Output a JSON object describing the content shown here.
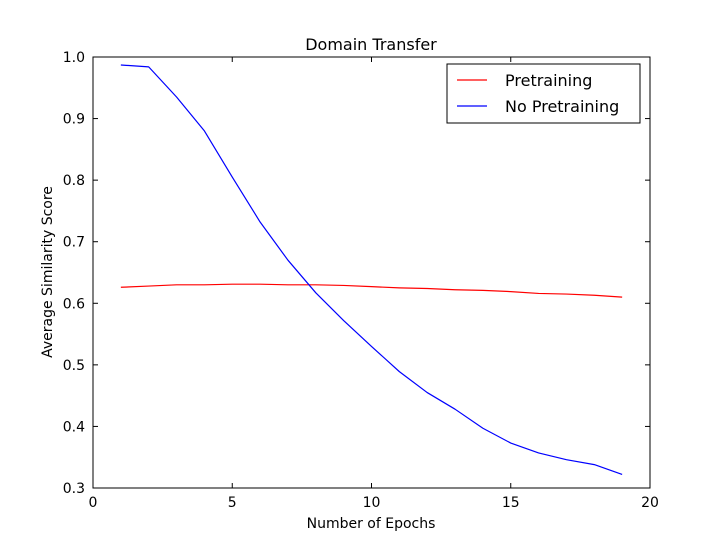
{
  "chart_data": {
    "type": "line",
    "title": "Domain Transfer",
    "xlabel": "Number of Epochs",
    "ylabel": "Average Similarity Score",
    "xlim": [
      0,
      20
    ],
    "ylim": [
      0.3,
      1.0
    ],
    "xticks": [
      0,
      5,
      10,
      15,
      20
    ],
    "xtick_labels": [
      "0",
      "5",
      "10",
      "15",
      "20"
    ],
    "yticks": [
      0.3,
      0.4,
      0.5,
      0.6,
      0.7,
      0.8,
      0.9,
      1.0
    ],
    "ytick_labels": [
      "0.3",
      "0.4",
      "0.5",
      "0.6",
      "0.7",
      "0.8",
      "0.9",
      "1.0"
    ],
    "grid": false,
    "legend_position": "top-right",
    "x": [
      1,
      2,
      3,
      4,
      5,
      6,
      7,
      8,
      9,
      10,
      11,
      12,
      13,
      14,
      15,
      16,
      17,
      18,
      19
    ],
    "series": [
      {
        "name": "Pretraining",
        "color": "#ff0000",
        "values": [
          0.626,
          0.628,
          0.63,
          0.63,
          0.631,
          0.631,
          0.63,
          0.63,
          0.629,
          0.627,
          0.625,
          0.624,
          0.622,
          0.621,
          0.619,
          0.616,
          0.615,
          0.613,
          0.61
        ]
      },
      {
        "name": "No Pretraining",
        "color": "#0000ff",
        "values": [
          0.987,
          0.984,
          0.935,
          0.88,
          0.805,
          0.732,
          0.67,
          0.617,
          0.572,
          0.53,
          0.489,
          0.455,
          0.428,
          0.397,
          0.373,
          0.357,
          0.346,
          0.338,
          0.322
        ]
      }
    ]
  }
}
